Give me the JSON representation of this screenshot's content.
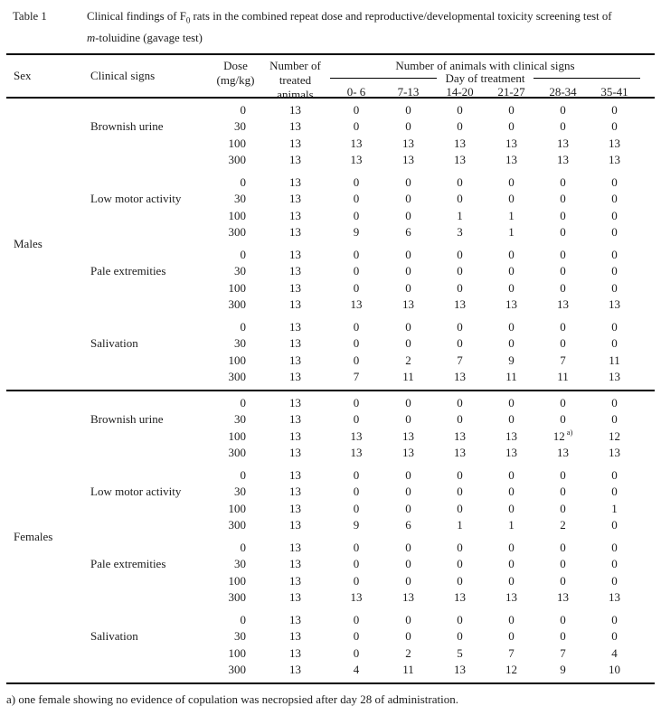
{
  "colors": {
    "background": "#ffffff",
    "text": "#1c1c1c",
    "rule": "#000000"
  },
  "caption": {
    "label": "Table 1",
    "line1_pre": "Clinical findings of F",
    "line1_sub": "0",
    "line1_post": " rats in the combined repeat dose and reproductive/developmental toxicity screening test of",
    "line2_italic": "m",
    "line2_rest": "-toluidine (gavage test)"
  },
  "header": {
    "sex": "Sex",
    "clinical_signs": "Clinical signs",
    "dose_line1": "Dose",
    "dose_line2": "(mg/kg)",
    "treated_line1": "Number of",
    "treated_line2": "treated",
    "treated_line3": "animals",
    "signs_group": "Number of animals with clinical signs",
    "day_group": "Day of treatment",
    "day_cols": [
      "0- 6",
      "7-13",
      "14-20",
      "21-27",
      "28-34",
      "35-41"
    ]
  },
  "table": {
    "sections": [
      {
        "sex": "Males",
        "groups": [
          {
            "sign": "Brownish urine",
            "rows": [
              {
                "dose": "0",
                "n": "13",
                "days": [
                  "0",
                  "0",
                  "0",
                  "0",
                  "0",
                  "0"
                ]
              },
              {
                "dose": "30",
                "n": "13",
                "days": [
                  "0",
                  "0",
                  "0",
                  "0",
                  "0",
                  "0"
                ]
              },
              {
                "dose": "100",
                "n": "13",
                "days": [
                  "13",
                  "13",
                  "13",
                  "13",
                  "13",
                  "13"
                ]
              },
              {
                "dose": "300",
                "n": "13",
                "days": [
                  "13",
                  "13",
                  "13",
                  "13",
                  "13",
                  "13"
                ]
              }
            ]
          },
          {
            "sign": "Low motor activity",
            "rows": [
              {
                "dose": "0",
                "n": "13",
                "days": [
                  "0",
                  "0",
                  "0",
                  "0",
                  "0",
                  "0"
                ]
              },
              {
                "dose": "30",
                "n": "13",
                "days": [
                  "0",
                  "0",
                  "0",
                  "0",
                  "0",
                  "0"
                ]
              },
              {
                "dose": "100",
                "n": "13",
                "days": [
                  "0",
                  "0",
                  "1",
                  "1",
                  "0",
                  "0"
                ]
              },
              {
                "dose": "300",
                "n": "13",
                "days": [
                  "9",
                  "6",
                  "3",
                  "1",
                  "0",
                  "0"
                ]
              }
            ]
          },
          {
            "sign": "Pale extremities",
            "rows": [
              {
                "dose": "0",
                "n": "13",
                "days": [
                  "0",
                  "0",
                  "0",
                  "0",
                  "0",
                  "0"
                ]
              },
              {
                "dose": "30",
                "n": "13",
                "days": [
                  "0",
                  "0",
                  "0",
                  "0",
                  "0",
                  "0"
                ]
              },
              {
                "dose": "100",
                "n": "13",
                "days": [
                  "0",
                  "0",
                  "0",
                  "0",
                  "0",
                  "0"
                ]
              },
              {
                "dose": "300",
                "n": "13",
                "days": [
                  "13",
                  "13",
                  "13",
                  "13",
                  "13",
                  "13"
                ]
              }
            ]
          },
          {
            "sign": "Salivation",
            "rows": [
              {
                "dose": "0",
                "n": "13",
                "days": [
                  "0",
                  "0",
                  "0",
                  "0",
                  "0",
                  "0"
                ]
              },
              {
                "dose": "30",
                "n": "13",
                "days": [
                  "0",
                  "0",
                  "0",
                  "0",
                  "0",
                  "0"
                ]
              },
              {
                "dose": "100",
                "n": "13",
                "days": [
                  "0",
                  "2",
                  "7",
                  "9",
                  "7",
                  "11"
                ]
              },
              {
                "dose": "300",
                "n": "13",
                "days": [
                  "7",
                  "11",
                  "13",
                  "11",
                  "11",
                  "13"
                ]
              }
            ]
          }
        ]
      },
      {
        "sex": "Females",
        "groups": [
          {
            "sign": "Brownish urine",
            "rows": [
              {
                "dose": "0",
                "n": "13",
                "days": [
                  "0",
                  "0",
                  "0",
                  "0",
                  "0",
                  "0"
                ]
              },
              {
                "dose": "30",
                "n": "13",
                "days": [
                  "0",
                  "0",
                  "0",
                  "0",
                  "0",
                  "0"
                ]
              },
              {
                "dose": "100",
                "n": "13",
                "days": [
                  "13",
                  "13",
                  "13",
                  "13",
                  {
                    "v": "12",
                    "sup": "a)"
                  },
                  "12"
                ]
              },
              {
                "dose": "300",
                "n": "13",
                "days": [
                  "13",
                  "13",
                  "13",
                  "13",
                  "13",
                  "13"
                ]
              }
            ]
          },
          {
            "sign": "Low motor activity",
            "rows": [
              {
                "dose": "0",
                "n": "13",
                "days": [
                  "0",
                  "0",
                  "0",
                  "0",
                  "0",
                  "0"
                ]
              },
              {
                "dose": "30",
                "n": "13",
                "days": [
                  "0",
                  "0",
                  "0",
                  "0",
                  "0",
                  "0"
                ]
              },
              {
                "dose": "100",
                "n": "13",
                "days": [
                  "0",
                  "0",
                  "0",
                  "0",
                  "0",
                  "1"
                ]
              },
              {
                "dose": "300",
                "n": "13",
                "days": [
                  "9",
                  "6",
                  "1",
                  "1",
                  "2",
                  "0"
                ]
              }
            ]
          },
          {
            "sign": "Pale extremities",
            "rows": [
              {
                "dose": "0",
                "n": "13",
                "days": [
                  "0",
                  "0",
                  "0",
                  "0",
                  "0",
                  "0"
                ]
              },
              {
                "dose": "30",
                "n": "13",
                "days": [
                  "0",
                  "0",
                  "0",
                  "0",
                  "0",
                  "0"
                ]
              },
              {
                "dose": "100",
                "n": "13",
                "days": [
                  "0",
                  "0",
                  "0",
                  "0",
                  "0",
                  "0"
                ]
              },
              {
                "dose": "300",
                "n": "13",
                "days": [
                  "13",
                  "13",
                  "13",
                  "13",
                  "13",
                  "13"
                ]
              }
            ]
          },
          {
            "sign": "Salivation",
            "rows": [
              {
                "dose": "0",
                "n": "13",
                "days": [
                  "0",
                  "0",
                  "0",
                  "0",
                  "0",
                  "0"
                ]
              },
              {
                "dose": "30",
                "n": "13",
                "days": [
                  "0",
                  "0",
                  "0",
                  "0",
                  "0",
                  "0"
                ]
              },
              {
                "dose": "100",
                "n": "13",
                "days": [
                  "0",
                  "2",
                  "5",
                  "7",
                  "7",
                  "4"
                ]
              },
              {
                "dose": "300",
                "n": "13",
                "days": [
                  "4",
                  "11",
                  "13",
                  "12",
                  "9",
                  "10"
                ]
              }
            ]
          }
        ]
      }
    ]
  },
  "footnote": "a) one female showing no evidence of copulation was necropsied after day 28 of administration."
}
